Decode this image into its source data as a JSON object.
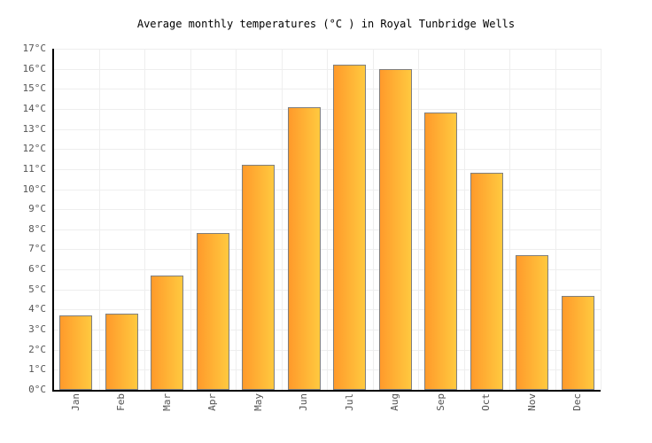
{
  "title": "Average monthly temperatures (°C ) in Royal Tunbridge Wells",
  "chart_data": {
    "type": "bar",
    "title": "Average monthly temperatures (°C ) in Royal Tunbridge Wells",
    "categories": [
      "Jan",
      "Feb",
      "Mar",
      "Apr",
      "May",
      "Jun",
      "Jul",
      "Aug",
      "Sep",
      "Oct",
      "Nov",
      "Dec"
    ],
    "values": [
      3.7,
      3.8,
      5.7,
      7.8,
      11.2,
      14.1,
      16.2,
      16.0,
      13.8,
      10.8,
      6.7,
      4.7
    ],
    "xlabel": "",
    "ylabel": "",
    "ylim": [
      0,
      17
    ],
    "ytick_step": 1,
    "ytick_suffix": "°C",
    "grid": true,
    "legend_position": "none",
    "colors": {
      "bar_gradient_left": "#ff9a2b",
      "bar_gradient_right": "#ffc93f",
      "bar_border": "#7f7f7f",
      "gridline": "#eeeeee",
      "axis": "#000000",
      "tick_label": "#545454",
      "title_text": "#000000",
      "background": "#ffffff"
    }
  }
}
